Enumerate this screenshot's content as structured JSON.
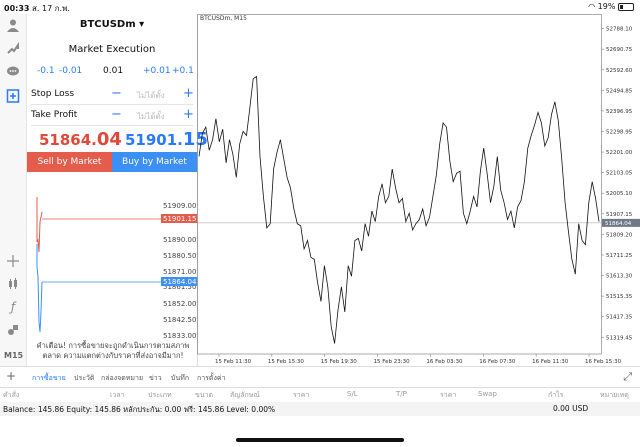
{
  "status": {
    "time": "00:33",
    "date": "ส. 17 ก.พ.",
    "battery": "19%"
  },
  "order": {
    "symbol": "BTCUSDm ▾",
    "execution": "Market Execution",
    "volume": {
      "minus_large": "-0.1",
      "minus_small": "-0.01",
      "value": "0.01",
      "plus_small": "+0.01",
      "plus_large": "+0.1"
    },
    "stop_loss": {
      "label": "Stop Loss",
      "placeholder": "ไม่ได้ตั้ง"
    },
    "take_profit": {
      "label": "Take Profit",
      "placeholder": "ไม่ได้ตั้ง"
    },
    "bid_main": "51864.",
    "bid_big": "04",
    "ask_main": "51901.",
    "ask_big": "15",
    "sell_label": "Sell by Market",
    "buy_label": "Buy by Market",
    "mini_ticks": [
      "51909.00",
      "51890.00",
      "51880.50",
      "51871.00",
      "51861.50",
      "51852.00",
      "51842.50",
      "51833.00"
    ],
    "mini_ask_tag": "51901.15",
    "mini_bid_tag": "51864.04",
    "warning": "คำเตือน! การซื้อขายจะถูกดำเนินการตามสภาพตลาด ความแตกต่างกับราคาที่ส่งอาจมีมาก!"
  },
  "chart_title": "BTCUSDm, M15",
  "chart_data": {
    "type": "line",
    "title": "BTCUSDm, M15",
    "x_ticks": [
      "15 Feb 11:30",
      "15 Feb 15:30",
      "15 Feb 19:30",
      "15 Feb 23:30",
      "16 Feb 03:30",
      "16 Feb 07:30",
      "16 Feb 11:30",
      "16 Feb 15:30"
    ],
    "y_ticks": [
      52788.1,
      52690.75,
      52592.6,
      52494.85,
      52396.95,
      52298.95,
      52201.0,
      52103.05,
      52005.1,
      51907.15,
      51809.2,
      51711.25,
      51613.3,
      51515.35,
      51417.35,
      51319.45
    ],
    "current_price": 51864.04,
    "ylim": [
      51240,
      52820
    ],
    "values": [
      52180,
      52290,
      52320,
      52210,
      52260,
      52360,
      52250,
      52310,
      52150,
      52260,
      52190,
      52080,
      52240,
      52300,
      52280,
      52410,
      52550,
      52560,
      52180,
      51990,
      51840,
      51860,
      52120,
      52200,
      52260,
      52170,
      52080,
      52030,
      51930,
      51860,
      51850,
      51740,
      51780,
      51700,
      51690,
      51580,
      51490,
      51660,
      51560,
      51370,
      51290,
      51450,
      51560,
      51440,
      51660,
      51610,
      51780,
      51790,
      51730,
      51860,
      51800,
      51920,
      51870,
      51990,
      52050,
      51960,
      51990,
      52120,
      52030,
      51960,
      51980,
      51870,
      51910,
      51830,
      51860,
      51880,
      51930,
      51850,
      51890,
      51990,
      52090,
      52240,
      52340,
      52320,
      52160,
      52060,
      52100,
      52110,
      51910,
      51860,
      51920,
      51990,
      51940,
      52110,
      52220,
      52100,
      51960,
      52040,
      52180,
      52020,
      51960,
      51880,
      51920,
      51840,
      51940,
      51970,
      52060,
      52220,
      52280,
      52330,
      52390,
      52340,
      52230,
      52270,
      52380,
      52440,
      52350,
      52170,
      51960,
      51820,
      51690,
      51620,
      51860,
      51780,
      51760,
      51960,
      52060,
      51980,
      51870
    ]
  },
  "tabs": [
    "การซื้อขาย",
    "ประวัติ",
    "กล่องจดหมาย",
    "ข่าว",
    "บันทึก",
    "การตั้งค่า"
  ],
  "columns": [
    "คำสั่ง",
    "เวลา",
    "ประเภท",
    "ขนาด",
    "สัญลักษณ์",
    "ราคา",
    "S/L",
    "T/P",
    "ราคา",
    "Swap",
    "กำไร",
    "หมายเหตุ"
  ],
  "balance_line": "Balance: 145.86 Equity: 145.86 หลักประกัน: 0.00 ฟรี: 145.86 Level: 0.00%",
  "profit_line": "0.00  USD",
  "colors": {
    "sell": "#e45c4c",
    "buy": "#3b8ff5",
    "accent": "#2979ff"
  }
}
